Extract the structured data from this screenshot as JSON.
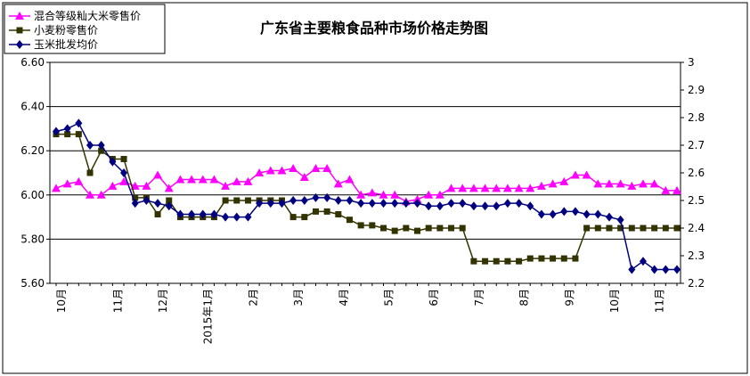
{
  "chart_data": {
    "type": "line",
    "title": "广东省主要粮食品种市场价格走势图",
    "y_left": {
      "min": 5.6,
      "max": 6.6,
      "step": 0.2,
      "ticks": [
        "5.60",
        "5.80",
        "6.00",
        "6.20",
        "6.40",
        "6.60"
      ]
    },
    "y_right": {
      "min": 2.2,
      "max": 3.0,
      "step": 0.1,
      "ticks": [
        "2.2",
        "2.3",
        "2.4",
        "2.5",
        "2.6",
        "2.7",
        "2.8",
        "2.9",
        "3"
      ]
    },
    "gridlines_left": [
      5.8,
      6.0,
      6.2,
      6.4,
      6.6
    ],
    "legend_position": "top-left",
    "x_labels": [
      {
        "i": 0,
        "text": "10月"
      },
      {
        "i": 5,
        "text": "11月"
      },
      {
        "i": 9,
        "text": "12月"
      },
      {
        "i": 13,
        "text": "2015年1月"
      },
      {
        "i": 17,
        "text": "2月"
      },
      {
        "i": 21,
        "text": "3月"
      },
      {
        "i": 25,
        "text": "4月"
      },
      {
        "i": 29,
        "text": "5月"
      },
      {
        "i": 33,
        "text": "6月"
      },
      {
        "i": 37,
        "text": "7月"
      },
      {
        "i": 41,
        "text": "8月"
      },
      {
        "i": 45,
        "text": "9月"
      },
      {
        "i": 49,
        "text": "10月"
      },
      {
        "i": 53,
        "text": "11月"
      }
    ],
    "series": [
      {
        "name": "混合等级籼大米零售价",
        "axis": "left",
        "color": "#ff00ff",
        "marker": "triangle",
        "values": [
          6.03,
          6.05,
          6.06,
          6.0,
          6.0,
          6.04,
          6.06,
          6.04,
          6.04,
          6.09,
          6.03,
          6.07,
          6.07,
          6.07,
          6.07,
          6.04,
          6.06,
          6.06,
          6.1,
          6.11,
          6.11,
          6.12,
          6.08,
          6.12,
          6.12,
          6.05,
          6.07,
          6.0,
          6.01,
          6.0,
          6.0,
          5.97,
          5.98,
          6.0,
          6.0,
          6.03,
          6.03,
          6.03,
          6.03,
          6.03,
          6.03,
          6.03,
          6.03,
          6.04,
          6.05,
          6.06,
          6.09,
          6.09,
          6.05,
          6.05,
          6.05,
          6.04,
          6.05,
          6.05,
          6.02,
          6.02
        ]
      },
      {
        "name": "小麦粉零售价",
        "axis": "right",
        "color": "#333300",
        "marker": "square",
        "values": [
          2.74,
          2.74,
          2.74,
          2.6,
          2.68,
          2.65,
          2.65,
          2.51,
          2.51,
          2.45,
          2.5,
          2.44,
          2.44,
          2.44,
          2.44,
          2.5,
          2.5,
          2.5,
          2.5,
          2.5,
          2.5,
          2.44,
          2.44,
          2.46,
          2.46,
          2.45,
          2.43,
          2.41,
          2.41,
          2.4,
          2.39,
          2.4,
          2.39,
          2.4,
          2.4,
          2.4,
          2.4,
          2.28,
          2.28,
          2.28,
          2.28,
          2.28,
          2.29,
          2.29,
          2.29,
          2.29,
          2.29,
          2.4,
          2.4,
          2.4,
          2.4,
          2.4,
          2.4,
          2.4,
          2.4,
          2.4
        ]
      },
      {
        "name": "玉米批发均价",
        "axis": "right",
        "color": "#000080",
        "marker": "diamond",
        "values": [
          2.75,
          2.76,
          2.78,
          2.7,
          2.7,
          2.64,
          2.6,
          2.49,
          2.5,
          2.49,
          2.48,
          2.45,
          2.45,
          2.45,
          2.45,
          2.44,
          2.44,
          2.44,
          2.49,
          2.49,
          2.49,
          2.5,
          2.5,
          2.51,
          2.51,
          2.5,
          2.5,
          2.49,
          2.49,
          2.49,
          2.49,
          2.49,
          2.49,
          2.48,
          2.48,
          2.49,
          2.49,
          2.48,
          2.48,
          2.48,
          2.49,
          2.49,
          2.48,
          2.45,
          2.45,
          2.46,
          2.46,
          2.45,
          2.45,
          2.44,
          2.43,
          2.25,
          2.28,
          2.25,
          2.25,
          2.25
        ]
      }
    ]
  }
}
